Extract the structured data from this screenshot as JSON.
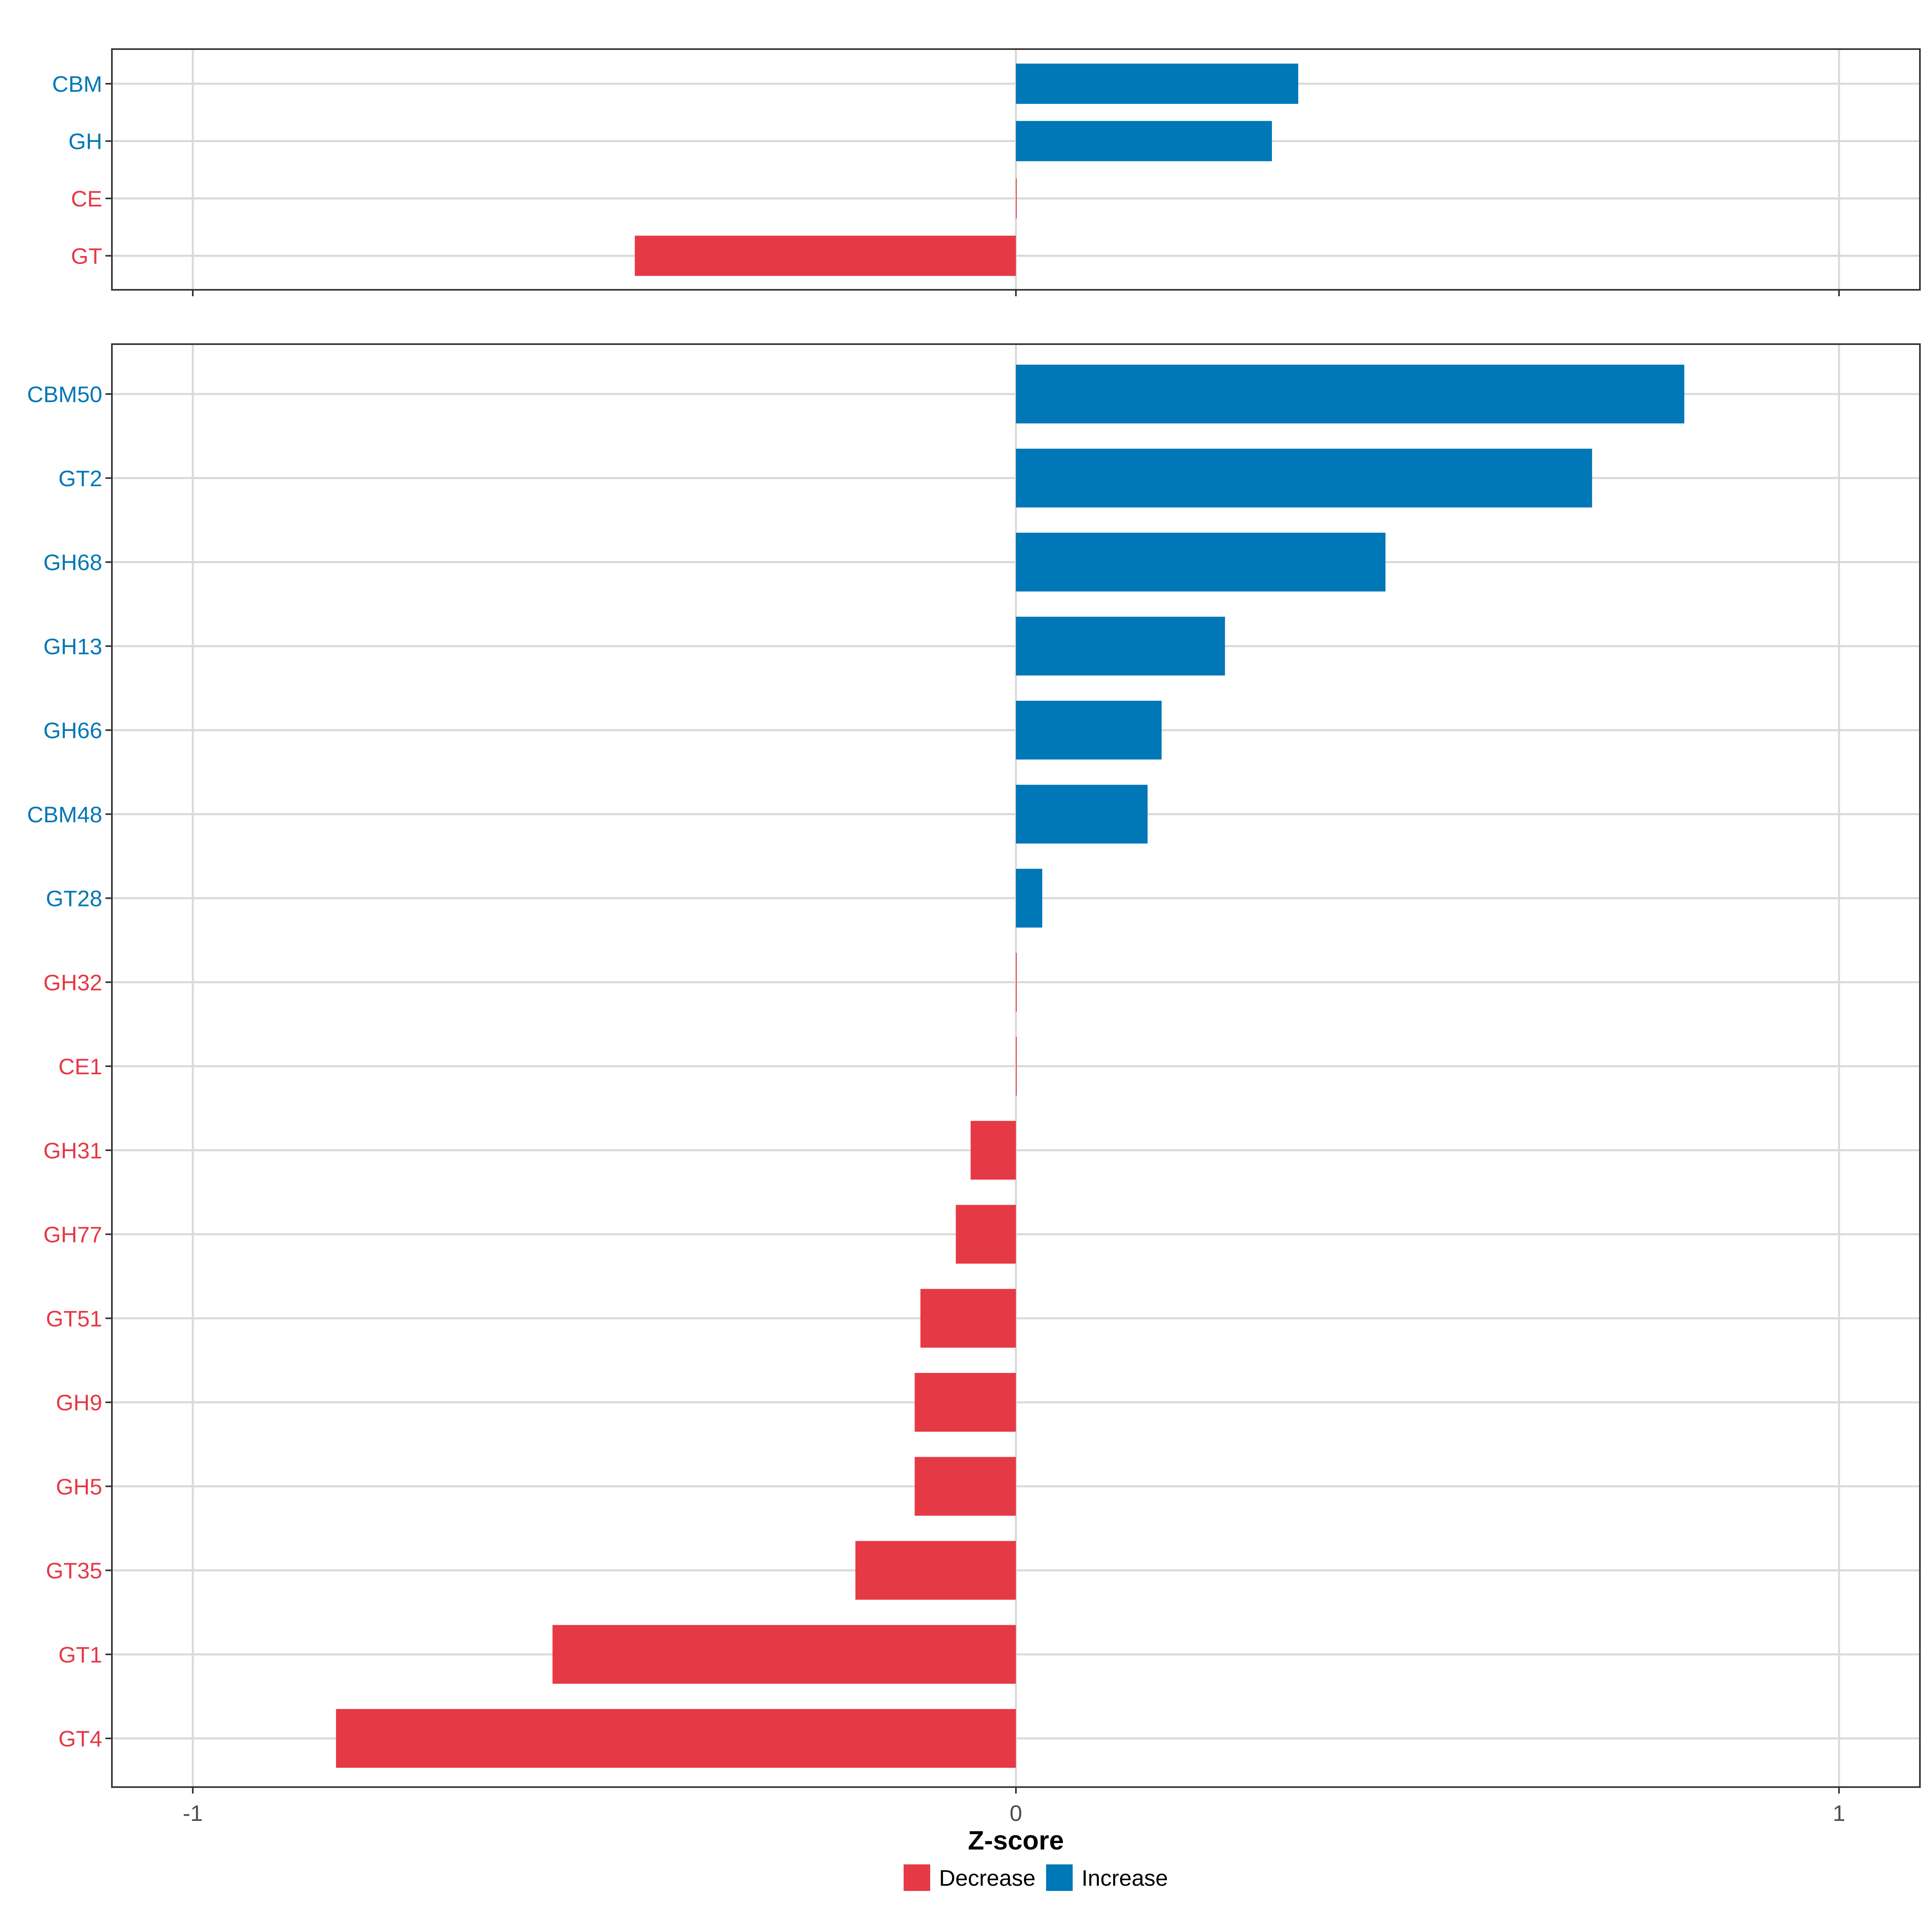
{
  "chart_data": [
    {
      "type": "bar",
      "orientation": "horizontal",
      "panel": "top",
      "categories": [
        "CBM",
        "GH",
        "CE",
        "GT"
      ],
      "values": [
        0.343,
        0.311,
        0.0,
        -0.463
      ],
      "directions": [
        "Increase",
        "Increase",
        "Decrease",
        "Decrease"
      ],
      "xlim": [
        -1.0,
        1.0
      ],
      "xticks": [
        -1,
        0,
        1
      ],
      "grid": true
    },
    {
      "type": "bar",
      "orientation": "horizontal",
      "panel": "bottom",
      "categories": [
        "CBM50",
        "GT2",
        "GH68",
        "GH13",
        "GH66",
        "CBM48",
        "GT28",
        "GH32",
        "CE1",
        "GH31",
        "GH77",
        "GT51",
        "GH9",
        "GH5",
        "GT35",
        "GT1",
        "GT4"
      ],
      "values": [
        0.812,
        0.7,
        0.449,
        0.254,
        0.177,
        0.16,
        0.032,
        0.0,
        0.0,
        -0.055,
        -0.073,
        -0.116,
        -0.123,
        -0.123,
        -0.195,
        -0.563,
        -0.826
      ],
      "directions": [
        "Increase",
        "Increase",
        "Increase",
        "Increase",
        "Increase",
        "Increase",
        "Increase",
        "Decrease",
        "Decrease",
        "Decrease",
        "Decrease",
        "Decrease",
        "Decrease",
        "Decrease",
        "Decrease",
        "Decrease",
        "Decrease"
      ],
      "xlim": [
        -1.0,
        1.0
      ],
      "xticks": [
        -1,
        0,
        1
      ],
      "xtick_labels": [
        "-1",
        "0",
        "1"
      ],
      "xlabel": "Z-score",
      "grid": true
    }
  ],
  "legend": {
    "position": "bottom",
    "entries": [
      {
        "label": "Decrease",
        "color": "#E63946"
      },
      {
        "label": "Increase",
        "color": "#0077B6"
      }
    ]
  },
  "colors": {
    "Decrease": "#E63946",
    "Increase": "#0077B6",
    "grid": "#D9D9D9",
    "border": "#333333",
    "tick_text": "#4D4D4D"
  }
}
